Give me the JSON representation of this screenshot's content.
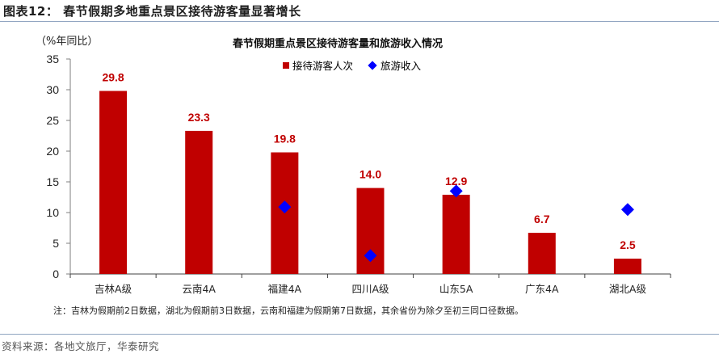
{
  "figure": {
    "title": "图表12： 春节假期多地重点景区接待游客量显著增长",
    "unit_label": "（%年同比）",
    "note": "注：吉林为假期前2日数据，湖北为假期前3日数据，云南和福建为假期第7日数据，其余省份为除夕至初三同口径数据。",
    "source": "资料来源：各地文旅厅，华泰研究"
  },
  "chart_data": {
    "type": "bar",
    "title": "春节假期重点景区接待游客量和旅游收入情况",
    "xlabel": "",
    "ylabel": "%年同比",
    "ylim": [
      0,
      35
    ],
    "yticks": [
      0,
      5,
      10,
      15,
      20,
      25,
      30,
      35
    ],
    "grid": false,
    "legend_position": "top",
    "categories": [
      "吉林A级",
      "云南4A",
      "福建4A",
      "四川A级",
      "山东5A",
      "广东4A",
      "湖北A级"
    ],
    "series": [
      {
        "name": "接待游客人次",
        "type": "bar",
        "color": "#c00000",
        "values": [
          29.8,
          23.3,
          19.8,
          14.0,
          12.9,
          6.7,
          2.5
        ],
        "labels": [
          "29.8",
          "23.3",
          "19.8",
          "14.0",
          "12.9",
          "6.7",
          "2.5"
        ]
      },
      {
        "name": "旅游收入",
        "type": "scatter",
        "marker": "diamond",
        "color": "#0000ff",
        "values": [
          null,
          null,
          10.9,
          3.0,
          13.5,
          null,
          10.5
        ]
      }
    ]
  }
}
